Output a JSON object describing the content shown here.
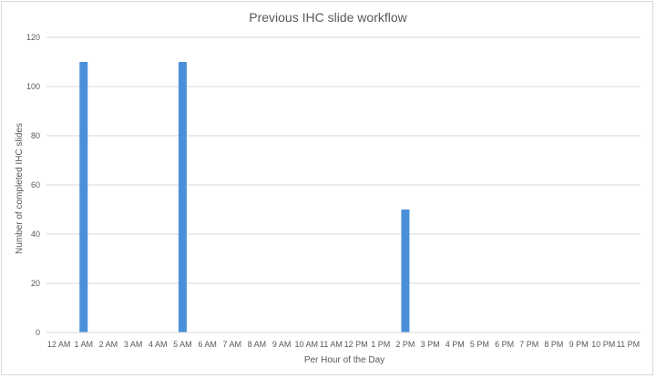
{
  "chart_data": {
    "type": "bar",
    "title": "Previous IHC slide workflow",
    "xlabel": "Per Hour of the Day",
    "ylabel": "Number of completed IHC slides",
    "categories": [
      "12 AM",
      "1 AM",
      "2 AM",
      "3 AM",
      "4 AM",
      "5 AM",
      "6 AM",
      "7 AM",
      "8 AM",
      "9 AM",
      "10 AM",
      "11 AM",
      "12 PM",
      "1 PM",
      "2 PM",
      "3 PM",
      "4 PM",
      "5 PM",
      "6 PM",
      "7 PM",
      "8 PM",
      "9 PM",
      "10 PM",
      "11 PM"
    ],
    "values": [
      0,
      110,
      0,
      0,
      0,
      110,
      0,
      0,
      0,
      0,
      0,
      0,
      0,
      0,
      50,
      0,
      0,
      0,
      0,
      0,
      0,
      0,
      0,
      0
    ],
    "ylim": [
      0,
      120
    ],
    "yticks": [
      0,
      20,
      40,
      60,
      80,
      100,
      120
    ],
    "grid": true,
    "legend": "none",
    "bar_color": "#4a90d9",
    "grid_color": "#d9d9d9"
  }
}
